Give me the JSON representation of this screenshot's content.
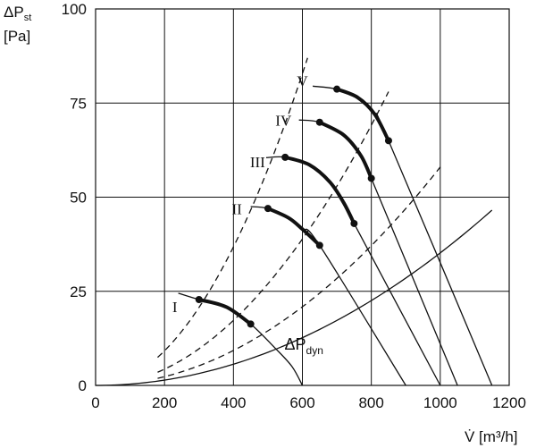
{
  "chart_data": {
    "type": "line",
    "title": "",
    "ylabel_parts": {
      "delta": "ΔP",
      "sub": "st",
      "unit": "[Pa]"
    },
    "xlabel": "V̇ [m³/h]",
    "xlim": [
      0,
      1200
    ],
    "ylim": [
      0,
      100
    ],
    "x_ticks": [
      0,
      200,
      400,
      600,
      800,
      1000,
      1200
    ],
    "y_ticks": [
      0,
      25,
      50,
      75,
      100
    ],
    "x_tick_labels": [
      "0",
      "200",
      "400",
      "600",
      "800",
      "1000",
      "1200"
    ],
    "y_tick_labels": [
      "0",
      "25",
      "50",
      "75",
      "100"
    ],
    "grid": true,
    "fan_curves": [
      {
        "name": "I",
        "points": [
          [
            240,
            24.5
          ],
          [
            300,
            22.8
          ],
          [
            380,
            20.8
          ],
          [
            450,
            16.3
          ],
          [
            520,
            10
          ],
          [
            570,
            5
          ],
          [
            600,
            0
          ]
        ],
        "thick_range": [
          300,
          450
        ],
        "marks": [
          [
            300,
            22.8
          ],
          [
            450,
            16.3
          ]
        ]
      },
      {
        "name": "II",
        "points": [
          [
            450,
            47.5
          ],
          [
            500,
            47
          ],
          [
            560,
            44.5
          ],
          [
            600,
            41.5
          ],
          [
            650,
            37.2
          ],
          [
            900,
            0
          ]
        ],
        "thick_range": [
          500,
          650
        ],
        "marks": [
          [
            500,
            47
          ],
          [
            650,
            37.2
          ]
        ]
      },
      {
        "name": "III",
        "points": [
          [
            495,
            60.5
          ],
          [
            550,
            60.6
          ],
          [
            620,
            58.6
          ],
          [
            680,
            54
          ],
          [
            720,
            48.5
          ],
          [
            750,
            43
          ],
          [
            1000,
            0
          ]
        ],
        "thick_range": [
          550,
          750
        ],
        "marks": [
          [
            550,
            60.6
          ],
          [
            750,
            43
          ]
        ]
      },
      {
        "name": "IV",
        "points": [
          [
            590,
            70.5
          ],
          [
            650,
            69.9
          ],
          [
            720,
            66.5
          ],
          [
            770,
            61
          ],
          [
            800,
            55
          ],
          [
            1050,
            0
          ]
        ],
        "thick_range": [
          650,
          800
        ],
        "marks": [
          [
            650,
            69.9
          ],
          [
            800,
            55
          ]
        ]
      },
      {
        "name": "V",
        "points": [
          [
            630,
            79.5
          ],
          [
            700,
            78.7
          ],
          [
            760,
            76.5
          ],
          [
            810,
            72
          ],
          [
            850,
            65
          ],
          [
            1150,
            0
          ]
        ],
        "thick_range": [
          700,
          850
        ],
        "marks": [
          [
            700,
            78.7
          ],
          [
            850,
            65
          ]
        ]
      }
    ],
    "system_curves": [
      {
        "k": 0.00023,
        "x_range": [
          180,
          615
        ]
      },
      {
        "k": 0.000108,
        "x_range": [
          180,
          850
        ]
      },
      {
        "k": 5.8e-05,
        "x_range": [
          180,
          1000
        ]
      }
    ],
    "dynamic_curve": {
      "name": "ΔPdyn",
      "name_main": "ΔP",
      "name_sub": "dyn",
      "k": 3.52e-05,
      "x_range": [
        0,
        1150
      ]
    },
    "series_labels": [
      {
        "text": "I",
        "x": 230,
        "y": 19.5
      },
      {
        "text": "II",
        "x": 410,
        "y": 45.5
      },
      {
        "text": "III",
        "x": 470,
        "y": 58
      },
      {
        "text": "IV",
        "x": 545,
        "y": 69
      },
      {
        "text": "V",
        "x": 600,
        "y": 79.5
      }
    ],
    "dyn_label_anchor": {
      "x": 600,
      "y": 10
    }
  }
}
